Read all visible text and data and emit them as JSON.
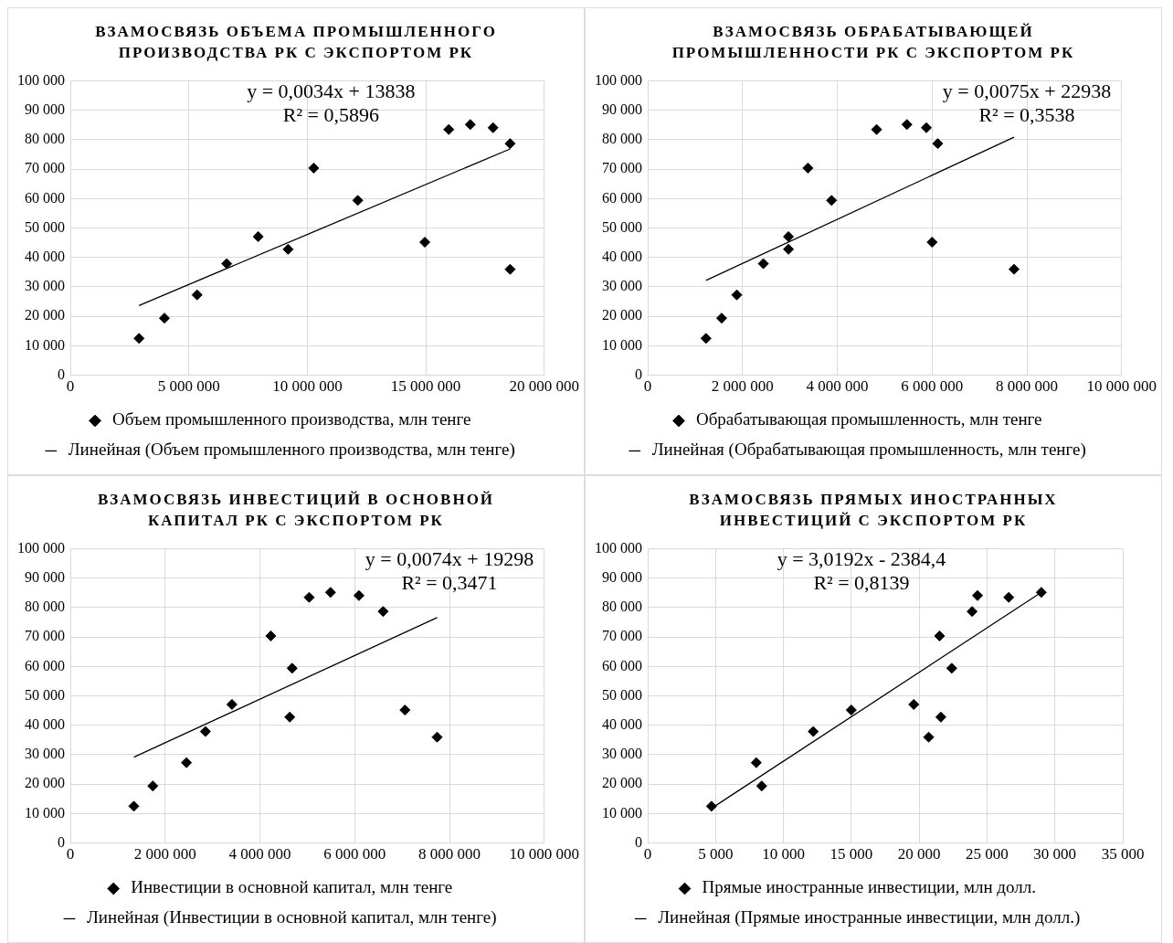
{
  "chart_data": [
    {
      "type": "scatter",
      "title": "ВЗАМОСВЯЗЬ ОБЪЕМА ПРОМЫШЛЕННОГО ПРОИЗВОДСТВА РК С ЭКСПОРТОМ РК",
      "annotations": [
        "y = 0,0034x + 13838",
        "R² = 0,5896"
      ],
      "marker": "diamond",
      "grid": true,
      "legend": "bottom",
      "xlim": [
        0,
        20000000
      ],
      "xticks": [
        {
          "value": 0,
          "label": "0"
        },
        {
          "value": 5000000,
          "label": "5 000 000"
        },
        {
          "value": 10000000,
          "label": "10 000 000"
        },
        {
          "value": 15000000,
          "label": "15 000 000"
        },
        {
          "value": 20000000,
          "label": "20 000 000"
        }
      ],
      "ylim": [
        0,
        100000
      ],
      "yticks": [
        {
          "value": 0,
          "label": "0"
        },
        {
          "value": 10000,
          "label": "10 000"
        },
        {
          "value": 20000,
          "label": "20 000"
        },
        {
          "value": 30000,
          "label": "30 000"
        },
        {
          "value": 40000,
          "label": "40 000"
        },
        {
          "value": 50000,
          "label": "50 000"
        },
        {
          "value": 60000,
          "label": "60 000"
        },
        {
          "value": 70000,
          "label": "70 000"
        },
        {
          "value": 80000,
          "label": "80 000"
        },
        {
          "value": 90000,
          "label": "90 000"
        },
        {
          "value": 100000,
          "label": "100 000"
        }
      ],
      "series": [
        {
          "name": "Объем промышленного производства, млн тенге",
          "color": "#000000",
          "x": [
            2900000,
            3970000,
            5350000,
            6600000,
            7930000,
            9190000,
            10270000,
            12130000,
            14960000,
            15970000,
            16880000,
            17840000,
            18560000,
            18560000
          ],
          "values": [
            12500,
            19400,
            27300,
            37900,
            47100,
            42800,
            70400,
            59400,
            45200,
            83500,
            85200,
            84100,
            78700,
            36000
          ]
        },
        {
          "type": "line",
          "marker": "none",
          "line_style": "solid",
          "name": "Линейная (Объем промышленного производства, млн тенге)",
          "color": "#000000",
          "x": [
            2900000,
            18560000
          ],
          "values": [
            23700,
            76900
          ]
        }
      ]
    },
    {
      "type": "scatter",
      "title": "ВЗАМОСВЯЗЬ ОБРАБАТЫВАЮЩЕЙ ПРОМЫШЛЕННОСТИ РК С ЭКСПОРТОМ РК",
      "annotations": [
        "y = 0,0075x + 22938",
        "R² = 0,3538"
      ],
      "marker": "diamond",
      "grid": true,
      "legend": "bottom",
      "xlim": [
        0,
        10000000
      ],
      "xticks": [
        {
          "value": 0,
          "label": "0"
        },
        {
          "value": 2000000,
          "label": "2 000 000"
        },
        {
          "value": 4000000,
          "label": "4 000 000"
        },
        {
          "value": 6000000,
          "label": "6 000 000"
        },
        {
          "value": 8000000,
          "label": "8 000 000"
        },
        {
          "value": 10000000,
          "label": "10 000 000"
        }
      ],
      "ylim": [
        0,
        100000
      ],
      "yticks": [
        {
          "value": 0,
          "label": "0"
        },
        {
          "value": 10000,
          "label": "10 000"
        },
        {
          "value": 20000,
          "label": "20 000"
        },
        {
          "value": 30000,
          "label": "30 000"
        },
        {
          "value": 40000,
          "label": "40 000"
        },
        {
          "value": 50000,
          "label": "50 000"
        },
        {
          "value": 60000,
          "label": "60 000"
        },
        {
          "value": 70000,
          "label": "70 000"
        },
        {
          "value": 80000,
          "label": "80 000"
        },
        {
          "value": 90000,
          "label": "90 000"
        },
        {
          "value": 100000,
          "label": "100 000"
        }
      ],
      "series": [
        {
          "name": "Обрабатывающая промышленность, млн тенге",
          "color": "#000000",
          "x": [
            1230000,
            1560000,
            1880000,
            2440000,
            2970000,
            2970000,
            3380000,
            3880000,
            6000000,
            4830000,
            5470000,
            5880000,
            6120000,
            7730000
          ],
          "values": [
            12500,
            19400,
            27300,
            37900,
            47100,
            42800,
            70400,
            59400,
            45200,
            83500,
            85200,
            84100,
            78700,
            36000
          ]
        },
        {
          "type": "line",
          "marker": "none",
          "line_style": "solid",
          "name": "Линейная (Обрабатывающая промышленность, млн тенге)",
          "color": "#000000",
          "x": [
            1230000,
            7730000
          ],
          "values": [
            32200,
            80900
          ]
        }
      ]
    },
    {
      "type": "scatter",
      "title": "ВЗАМОСВЯЗЬ ИНВЕСТИЦИЙ В ОСНОВНОЙ КАПИТАЛ РК С ЭКСПОРТОМ РК",
      "annotations": [
        "y = 0,0074x + 19298",
        "R² = 0,3471"
      ],
      "marker": "diamond",
      "grid": true,
      "legend": "bottom",
      "xlim": [
        0,
        10000000
      ],
      "xticks": [
        {
          "value": 0,
          "label": "0"
        },
        {
          "value": 2000000,
          "label": "2 000 000"
        },
        {
          "value": 4000000,
          "label": "4 000 000"
        },
        {
          "value": 6000000,
          "label": "6 000 000"
        },
        {
          "value": 8000000,
          "label": "8 000 000"
        },
        {
          "value": 10000000,
          "label": "10 000 000"
        }
      ],
      "ylim": [
        0,
        100000
      ],
      "yticks": [
        {
          "value": 0,
          "label": "0"
        },
        {
          "value": 10000,
          "label": "10 000"
        },
        {
          "value": 20000,
          "label": "20 000"
        },
        {
          "value": 30000,
          "label": "30 000"
        },
        {
          "value": 40000,
          "label": "40 000"
        },
        {
          "value": 50000,
          "label": "50 000"
        },
        {
          "value": 60000,
          "label": "60 000"
        },
        {
          "value": 70000,
          "label": "70 000"
        },
        {
          "value": 80000,
          "label": "80 000"
        },
        {
          "value": 90000,
          "label": "90 000"
        },
        {
          "value": 100000,
          "label": "100 000"
        }
      ],
      "series": [
        {
          "name": "Инвестиции в основной капитал, млн тенге",
          "color": "#000000",
          "x": [
            1340000,
            1740000,
            2450000,
            2850000,
            3410000,
            4630000,
            4230000,
            4680000,
            7060000,
            5040000,
            5490000,
            6090000,
            6600000,
            7740000
          ],
          "values": [
            12500,
            19400,
            27300,
            37900,
            47100,
            42800,
            70400,
            59400,
            45200,
            83500,
            85200,
            84100,
            78700,
            36000
          ]
        },
        {
          "type": "line",
          "marker": "none",
          "line_style": "solid",
          "name": "Линейная (Инвестиции в основной капитал, млн тенге)",
          "color": "#000000",
          "x": [
            1340000,
            7740000
          ],
          "values": [
            29200,
            76600
          ]
        }
      ]
    },
    {
      "type": "scatter",
      "title": "ВЗАМОСВЯЗЬ ПРЯМЫХ ИНОСТРАННЫХ ИНВЕСТИЦИЙ С ЭКСПОРТОМ РК",
      "annotations": [
        "y = 3,0192x - 2384,4",
        "R² = 0,8139"
      ],
      "marker": "diamond",
      "grid": true,
      "legend": "bottom",
      "xlim": [
        0,
        35000
      ],
      "xticks": [
        {
          "value": 0,
          "label": "0"
        },
        {
          "value": 5000,
          "label": "5 000"
        },
        {
          "value": 10000,
          "label": "10 000"
        },
        {
          "value": 15000,
          "label": "15 000"
        },
        {
          "value": 20000,
          "label": "20 000"
        },
        {
          "value": 25000,
          "label": "25 000"
        },
        {
          "value": 30000,
          "label": "30 000"
        },
        {
          "value": 35000,
          "label": "35 000"
        }
      ],
      "ylim": [
        0,
        100000
      ],
      "yticks": [
        {
          "value": 0,
          "label": "0"
        },
        {
          "value": 10000,
          "label": "10 000"
        },
        {
          "value": 20000,
          "label": "20 000"
        },
        {
          "value": 30000,
          "label": "30 000"
        },
        {
          "value": 40000,
          "label": "40 000"
        },
        {
          "value": 50000,
          "label": "50 000"
        },
        {
          "value": 60000,
          "label": "60 000"
        },
        {
          "value": 70000,
          "label": "70 000"
        },
        {
          "value": 80000,
          "label": "80 000"
        },
        {
          "value": 90000,
          "label": "90 000"
        },
        {
          "value": 100000,
          "label": "100 000"
        }
      ],
      "series": [
        {
          "name": "Прямые иностранные инвестиции, млн долл.",
          "color": "#000000",
          "x": [
            4700,
            8400,
            8000,
            12200,
            19600,
            21600,
            21500,
            22400,
            15000,
            26600,
            29000,
            24300,
            23900,
            20700
          ],
          "values": [
            12500,
            19400,
            27300,
            37900,
            47100,
            42800,
            70400,
            59400,
            45200,
            83500,
            85200,
            84100,
            78700,
            36000
          ]
        },
        {
          "type": "line",
          "marker": "none",
          "line_style": "solid",
          "name": "Линейная (Прямые иностранные инвестиции, млн долл.)",
          "color": "#000000",
          "x": [
            4700,
            29000
          ],
          "values": [
            11800,
            85200
          ]
        }
      ]
    }
  ]
}
